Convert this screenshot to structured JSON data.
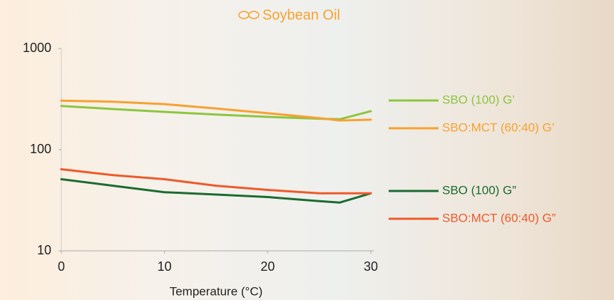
{
  "chart_data": {
    "type": "line",
    "title": "Soybean Oil",
    "x_label": "Temperature (°C)",
    "x": [
      0,
      5,
      10,
      15,
      20,
      25,
      27,
      30
    ],
    "series": [
      {
        "name": "SBO (100) G’",
        "color": "#8cc63f",
        "values": [
          270,
          252,
          236,
          222,
          211,
          202,
          200,
          240
        ]
      },
      {
        "name": "SBO:MCT (60:40) G’",
        "color": "#f7a130",
        "values": [
          305,
          298,
          282,
          255,
          229,
          205,
          194,
          198
        ]
      },
      {
        "name": "SBO (100) G”",
        "color": "#1b6b30",
        "values": [
          51,
          44,
          38,
          36,
          34,
          31,
          30,
          37
        ]
      },
      {
        "name": "SBO:MCT (60:40) G”",
        "color": "#ee5a2a",
        "values": [
          64,
          56,
          51,
          44,
          40,
          37,
          37,
          37
        ]
      }
    ],
    "xlim": [
      0,
      30
    ],
    "xticks": [
      0,
      10,
      20,
      30
    ],
    "ylim": [
      10,
      1000
    ],
    "yticks": [
      10,
      100,
      1000
    ],
    "ylog": true
  }
}
